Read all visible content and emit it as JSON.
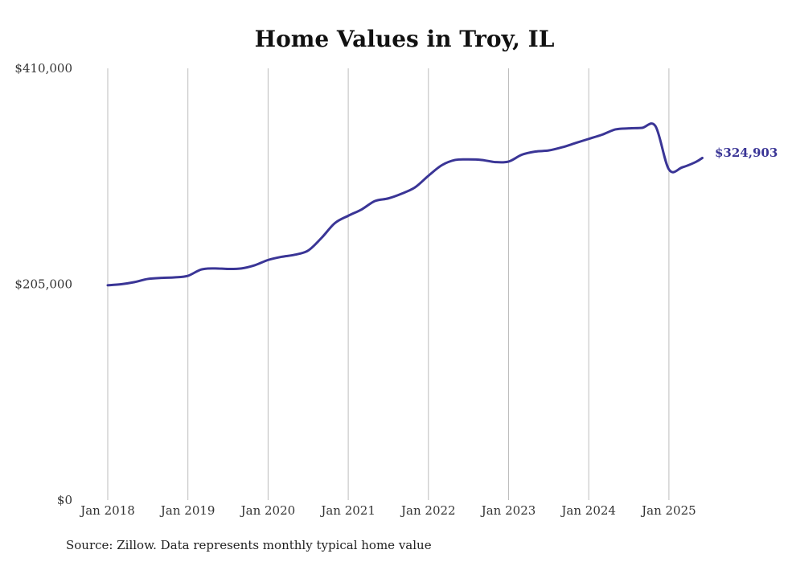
{
  "chart_data": {
    "type": "line",
    "title": "Home Values in Troy, IL",
    "xlabel": "",
    "ylabel": "",
    "source": "Source: Zillow. Data represents monthly typical home value",
    "x_ticks": [
      "Jan 2018",
      "Jan 2019",
      "Jan 2020",
      "Jan 2021",
      "Jan 2022",
      "Jan 2023",
      "Jan 2024",
      "Jan 2025"
    ],
    "y_ticks": [
      {
        "value": 0,
        "label": "$0"
      },
      {
        "value": 205000,
        "label": "$205,000"
      },
      {
        "value": 410000,
        "label": "$410,000"
      }
    ],
    "ylim": [
      0,
      410000
    ],
    "xlim": [
      "2018-01",
      "2025-06"
    ],
    "grid": {
      "vertical": true,
      "horizontal": false
    },
    "line_color": "#3a3596",
    "end_label": "$324,903",
    "series": [
      {
        "x": [
          "2018-01",
          "2018-03",
          "2018-05",
          "2018-07",
          "2018-09",
          "2018-11",
          "2019-01",
          "2019-03",
          "2019-05",
          "2019-07",
          "2019-09",
          "2019-11",
          "2020-01",
          "2020-03",
          "2020-05",
          "2020-07",
          "2020-09",
          "2020-11",
          "2021-01",
          "2021-03",
          "2021-05",
          "2021-07",
          "2021-09",
          "2021-11",
          "2022-01",
          "2022-03",
          "2022-05",
          "2022-07",
          "2022-09",
          "2022-11",
          "2023-01",
          "2023-03",
          "2023-05",
          "2023-07",
          "2023-09",
          "2023-11",
          "2024-01",
          "2024-03",
          "2024-05",
          "2024-07",
          "2024-09",
          "2024-11",
          "2025-01",
          "2025-03",
          "2025-05",
          "2025-06"
        ],
        "values": [
          204000,
          205000,
          207000,
          210000,
          211000,
          211500,
          213000,
          219000,
          220000,
          219500,
          220000,
          223000,
          228000,
          231000,
          233000,
          237000,
          249000,
          263000,
          270000,
          276000,
          284000,
          286500,
          291000,
          297000,
          308000,
          318000,
          323000,
          323500,
          323000,
          321000,
          321500,
          328000,
          331000,
          332000,
          335000,
          339000,
          343000,
          347000,
          352000,
          353000,
          353500,
          355000,
          314000,
          316000,
          321000,
          324903
        ]
      }
    ]
  }
}
